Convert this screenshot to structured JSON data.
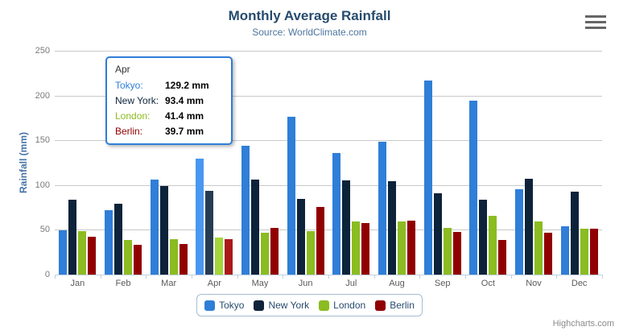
{
  "chart": {
    "title": "Monthly Average Rainfall",
    "subtitle": "Source: WorldClimate.com",
    "yaxis_title": "Rainfall (mm)",
    "credits": "Highcharts.com"
  },
  "colors": {
    "title": "#274b6d",
    "subtitle": "#4d759e",
    "axis_title": "#4572A7",
    "axis_line": "#C0D0E0",
    "tick": "#C0D0E0",
    "gridline": "#C9C9C9",
    "x_label": "#5a5a5a",
    "y_label": "#7a7a7a",
    "legend_text": "#274b6d",
    "legend_border": "#a4bcd4",
    "tooltip_border": "#2f7ed8",
    "tooltip_header": "#333333",
    "credits": "#8a8a8a",
    "menu_icon": "#666666"
  },
  "chart_data": {
    "type": "bar",
    "title": "Monthly Average Rainfall",
    "subtitle": "Source: WorldClimate.com",
    "xlabel": "",
    "ylabel": "Rainfall (mm)",
    "ylim": [
      0,
      250
    ],
    "ytick_interval": 50,
    "ytick_labels": [
      "0",
      "50",
      "100",
      "150",
      "200",
      "250"
    ],
    "grid": true,
    "legend_position": "bottom",
    "categories": [
      "Jan",
      "Feb",
      "Mar",
      "Apr",
      "May",
      "Jun",
      "Jul",
      "Aug",
      "Sep",
      "Oct",
      "Nov",
      "Dec"
    ],
    "series": [
      {
        "name": "Tokyo",
        "color": "#2f7ed8",
        "values": [
          49.9,
          71.5,
          106.4,
          129.2,
          144.0,
          176.0,
          135.6,
          148.5,
          216.4,
          194.1,
          95.6,
          54.4
        ]
      },
      {
        "name": "New York",
        "color": "#0d233a",
        "values": [
          83.6,
          78.8,
          98.5,
          93.4,
          106.0,
          84.5,
          105.0,
          104.3,
          91.2,
          83.5,
          106.6,
          92.3
        ]
      },
      {
        "name": "London",
        "color": "#8bbc21",
        "values": [
          48.9,
          38.8,
          39.3,
          41.4,
          47.0,
          48.3,
          59.0,
          59.6,
          52.4,
          65.2,
          59.3,
          51.2
        ]
      },
      {
        "name": "Berlin",
        "color": "#910000",
        "values": [
          42.4,
          33.2,
          34.5,
          39.7,
          52.6,
          75.5,
          57.4,
          60.4,
          47.6,
          39.1,
          46.8,
          51.1
        ]
      }
    ],
    "highlight": {
      "category": "Apr",
      "category_index": 3,
      "brighten": 25
    }
  },
  "tooltip": {
    "header": "Apr",
    "rows": [
      {
        "label": "Tokyo:",
        "value": "129.2 mm",
        "color": "#2f7ed8"
      },
      {
        "label": "New York:",
        "value": "93.4 mm",
        "color": "#0d233a"
      },
      {
        "label": "London:",
        "value": "41.4 mm",
        "color": "#8bbc21"
      },
      {
        "label": "Berlin:",
        "value": "39.7 mm",
        "color": "#910000"
      }
    ]
  },
  "legend": {
    "items": [
      {
        "label": "Tokyo",
        "color": "#2f7ed8"
      },
      {
        "label": "New York",
        "color": "#0d233a"
      },
      {
        "label": "London",
        "color": "#8bbc21"
      },
      {
        "label": "Berlin",
        "color": "#910000"
      }
    ]
  }
}
